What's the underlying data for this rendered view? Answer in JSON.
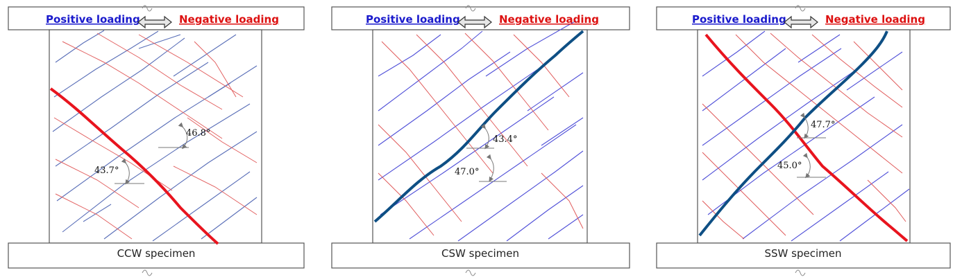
{
  "loading": {
    "positive": "Positive loading",
    "negative": "Negative loading"
  },
  "colors": {
    "positive_crack": "#5a5ad8",
    "negative_crack": "#e04a4a",
    "main_red": "#e8141e",
    "main_blue": "#0e4f84",
    "frame": "#555555"
  },
  "specimens": [
    {
      "name": "CCW specimen",
      "angles": [
        "46.8°",
        "43.7°"
      ],
      "main_crack": "red"
    },
    {
      "name": "CSW specimen",
      "angles": [
        "43.4°",
        "47.0°"
      ],
      "main_crack": "blue"
    },
    {
      "name": "SSW specimen",
      "angles": [
        "47.7°",
        "45.0°"
      ],
      "main_crack": "both"
    }
  ]
}
